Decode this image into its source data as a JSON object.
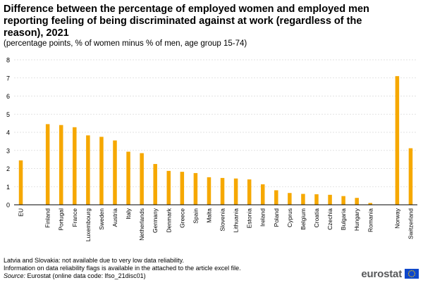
{
  "title": "Difference between the percentage of employed women and employed men reporting feeling of being discriminated against at work (regardless of the reason), 2021",
  "subtitle": "(percentage points, % of women minus % of men, age group 15-74)",
  "notes": [
    "Latvia and Slovakia: not available due to very low data reliability.",
    "Information on data reliability flags is available in the attached to the article excel file."
  ],
  "source_label": "Source:",
  "source_text": " Eurostat (online data code: lfso_21disc01)",
  "logo_text": "eurostat",
  "colors": {
    "bar": "#f6a800",
    "grid": "#d9d9d9",
    "axis": "#000000",
    "logo_flag": "#0e47cb"
  },
  "chart_data": {
    "type": "bar",
    "categories": [
      "EU",
      "",
      "Finland",
      "Portugal",
      "France",
      "Luxembourg",
      "Sweden",
      "Austria",
      "Italy",
      "Netherlands",
      "Germany",
      "Denmark",
      "Greece",
      "Spain",
      "Malta",
      "Slovenia",
      "Lithuania",
      "Estonia",
      "Ireland",
      "Poland",
      "Cyprus",
      "Belgium",
      "Croatia",
      "Czechia",
      "Bulgaria",
      "Hungary",
      "Romania",
      "",
      "Norway",
      "Switzerland"
    ],
    "values": [
      2.45,
      null,
      4.45,
      4.4,
      4.28,
      3.83,
      3.75,
      3.55,
      2.93,
      2.85,
      2.25,
      1.87,
      1.82,
      1.75,
      1.52,
      1.48,
      1.45,
      1.4,
      1.13,
      0.8,
      0.65,
      0.6,
      0.58,
      0.55,
      0.48,
      0.38,
      0.1,
      null,
      7.1,
      3.12
    ],
    "ylim": [
      0,
      8
    ],
    "yticks": [
      0,
      1,
      2,
      3,
      4,
      5,
      6,
      7,
      8
    ],
    "grid": true,
    "legend": "none"
  }
}
